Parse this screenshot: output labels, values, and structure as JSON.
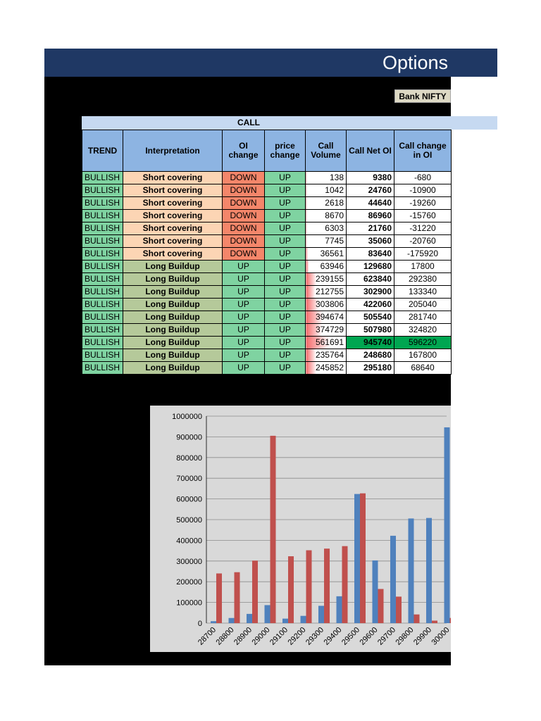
{
  "header": {
    "title": "Options",
    "symbol": "Bank NIFTY"
  },
  "table": {
    "group_label": "CALL",
    "columns": [
      "TREND",
      "Interpretation",
      "OI change",
      "price change",
      "Call Volume",
      "Call Net OI",
      "Call change in OI"
    ],
    "rows": [
      {
        "trend": "BULLISH",
        "interpretation": "Short covering",
        "oi_change": "DOWN",
        "price_change": "UP",
        "volume": "138",
        "net_oi": "9380",
        "change_oi": "-680"
      },
      {
        "trend": "BULLISH",
        "interpretation": "Short covering",
        "oi_change": "DOWN",
        "price_change": "UP",
        "volume": "1042",
        "net_oi": "24760",
        "change_oi": "-10900"
      },
      {
        "trend": "BULLISH",
        "interpretation": "Short covering",
        "oi_change": "DOWN",
        "price_change": "UP",
        "volume": "2618",
        "net_oi": "44640",
        "change_oi": "-19260"
      },
      {
        "trend": "BULLISH",
        "interpretation": "Short covering",
        "oi_change": "DOWN",
        "price_change": "UP",
        "volume": "8670",
        "net_oi": "86960",
        "change_oi": "-15760"
      },
      {
        "trend": "BULLISH",
        "interpretation": "Short covering",
        "oi_change": "DOWN",
        "price_change": "UP",
        "volume": "6303",
        "net_oi": "21760",
        "change_oi": "-31220"
      },
      {
        "trend": "BULLISH",
        "interpretation": "Short covering",
        "oi_change": "DOWN",
        "price_change": "UP",
        "volume": "7745",
        "net_oi": "35060",
        "change_oi": "-20760"
      },
      {
        "trend": "BULLISH",
        "interpretation": "Short covering",
        "oi_change": "DOWN",
        "price_change": "UP",
        "volume": "36561",
        "net_oi": "83640",
        "change_oi": "-175920"
      },
      {
        "trend": "BULLISH",
        "interpretation": "Long Buildup",
        "oi_change": "UP",
        "price_change": "UP",
        "volume": "63946",
        "net_oi": "129680",
        "change_oi": "17800"
      },
      {
        "trend": "BULLISH",
        "interpretation": "Long Buildup",
        "oi_change": "UP",
        "price_change": "UP",
        "volume": "239155",
        "net_oi": "623840",
        "change_oi": "292380"
      },
      {
        "trend": "BULLISH",
        "interpretation": "Long Buildup",
        "oi_change": "UP",
        "price_change": "UP",
        "volume": "212755",
        "net_oi": "302900",
        "change_oi": "133340"
      },
      {
        "trend": "BULLISH",
        "interpretation": "Long Buildup",
        "oi_change": "UP",
        "price_change": "UP",
        "volume": "303806",
        "net_oi": "422060",
        "change_oi": "205040"
      },
      {
        "trend": "BULLISH",
        "interpretation": "Long Buildup",
        "oi_change": "UP",
        "price_change": "UP",
        "volume": "394674",
        "net_oi": "505540",
        "change_oi": "281740"
      },
      {
        "trend": "BULLISH",
        "interpretation": "Long Buildup",
        "oi_change": "UP",
        "price_change": "UP",
        "volume": "374729",
        "net_oi": "507980",
        "change_oi": "324820"
      },
      {
        "trend": "BULLISH",
        "interpretation": "Long Buildup",
        "oi_change": "UP",
        "price_change": "UP",
        "volume": "561691",
        "net_oi": "945740",
        "change_oi": "596220",
        "highlight": true
      },
      {
        "trend": "BULLISH",
        "interpretation": "Long Buildup",
        "oi_change": "UP",
        "price_change": "UP",
        "volume": "235764",
        "net_oi": "248680",
        "change_oi": "167800"
      },
      {
        "trend": "BULLISH",
        "interpretation": "Long Buildup",
        "oi_change": "UP",
        "price_change": "UP",
        "volume": "245852",
        "net_oi": "295180",
        "change_oi": "68640"
      }
    ]
  },
  "colors": {
    "banner": "#1f3864",
    "series_blue": "#4f81bd",
    "series_red": "#c0504d",
    "highlight": "#00a651"
  },
  "chart_data": {
    "type": "bar",
    "categories": [
      "28700",
      "28800",
      "28900",
      "29000",
      "29100",
      "29200",
      "29300",
      "29400",
      "29500",
      "29600",
      "29700",
      "29800",
      "29900",
      "30000"
    ],
    "series": [
      {
        "values": [
          9380,
          24760,
          44640,
          86960,
          21760,
          35060,
          83640,
          129680,
          623840,
          302900,
          422060,
          505540,
          507980,
          945740
        ]
      },
      {
        "values": [
          240000,
          246000,
          302000,
          905000,
          323000,
          352000,
          360000,
          372000,
          627000,
          165000,
          128000,
          42000,
          12000,
          25000
        ]
      }
    ],
    "ylim": [
      0,
      1000000
    ],
    "yticks": [
      0,
      100000,
      200000,
      300000,
      400000,
      500000,
      600000,
      700000,
      800000,
      900000,
      1000000
    ],
    "grid": true,
    "legend": "none"
  }
}
